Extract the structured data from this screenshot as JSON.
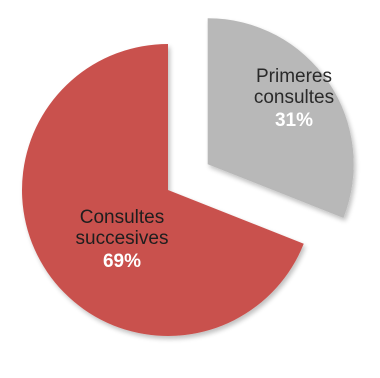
{
  "chart_data": {
    "type": "pie",
    "title": "",
    "slices": [
      {
        "label_lines": [
          "Primeres",
          "consultes"
        ],
        "value": 31,
        "value_label": "31%",
        "color": "#b8b8b8",
        "exploded": true
      },
      {
        "label_lines": [
          "Consultes",
          "succesives"
        ],
        "value": 69,
        "value_label": "69%",
        "color": "#c9514d",
        "exploded": false
      }
    ],
    "start_angle_deg": 0,
    "direction": "clockwise",
    "legend": "none"
  }
}
